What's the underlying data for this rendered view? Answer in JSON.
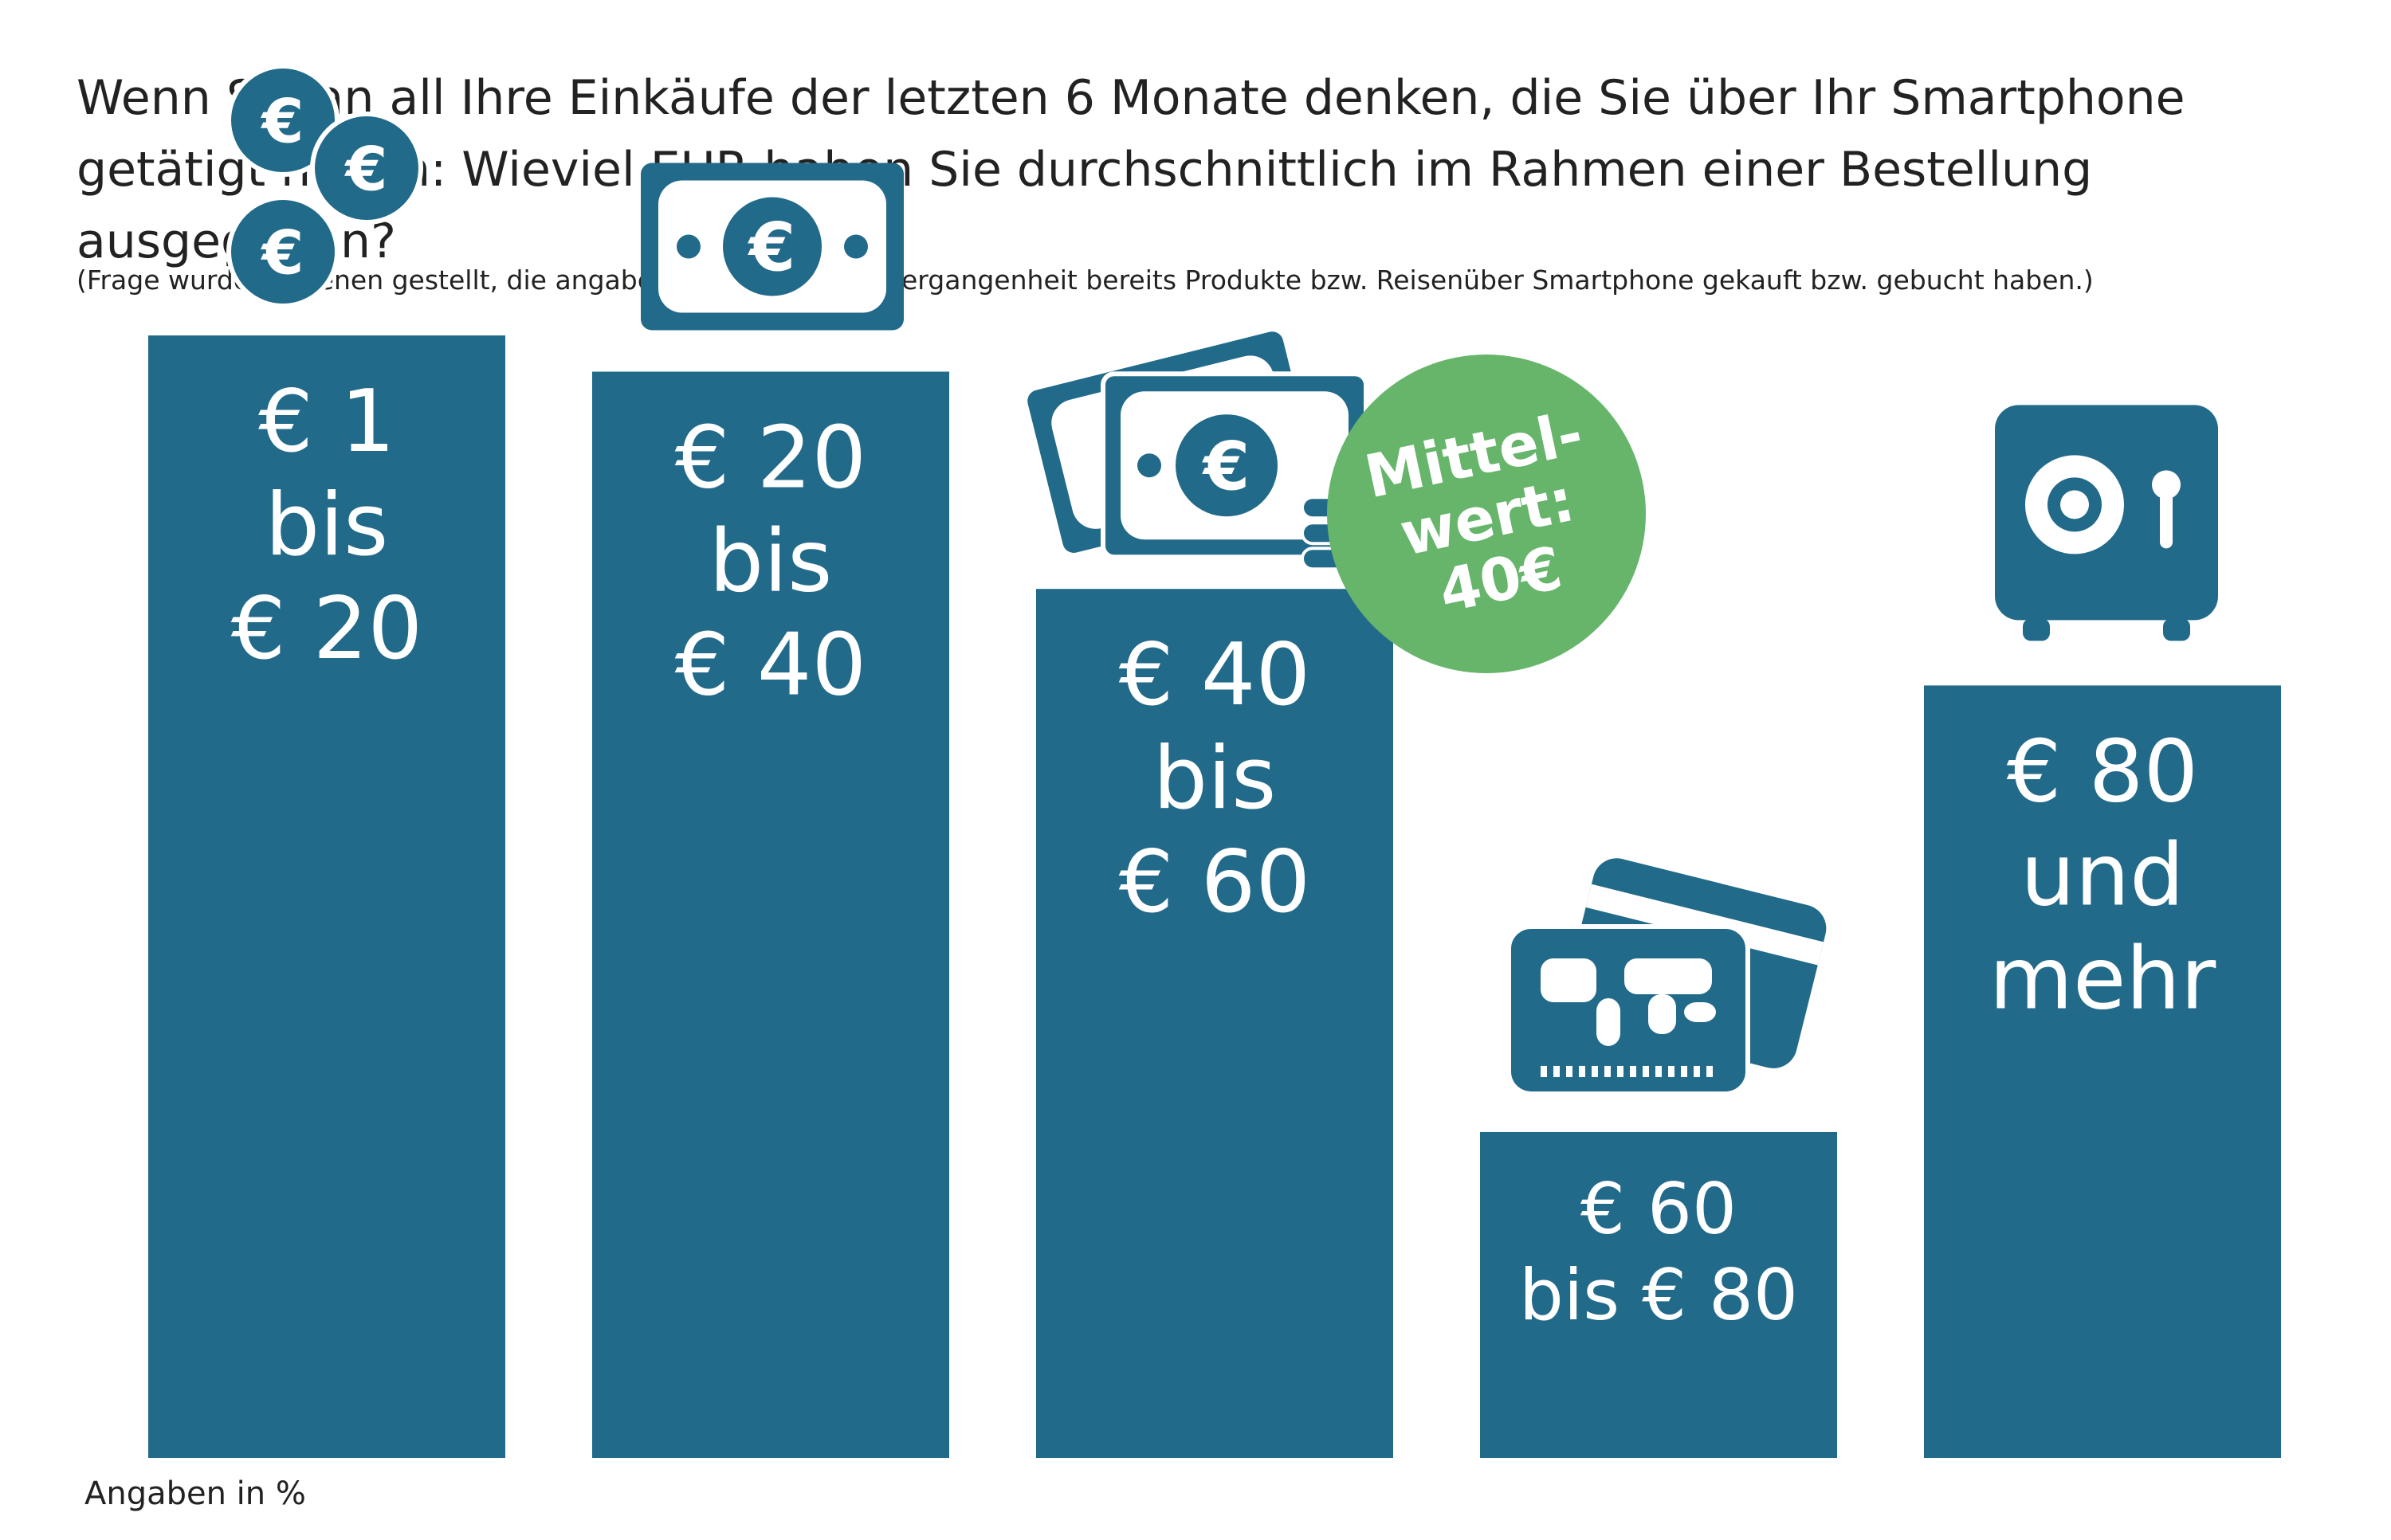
{
  "title": "Wenn Sie an all Ihre Einkäufe der letzten 6 Monate denken, die Sie über Ihr Smartphone getätigt haben: Wieviel EUR haben Sie durchschnittlich im Rahmen einer Bestellung ausgegeben?",
  "subtitle": "(Frage wurde nur jenen gestellt, die angaben, dass sie in der Vergangenheit bereits Produkte bzw. Reisenüber Smartphone gekauft bzw. gebucht haben.)",
  "footnote": "Angaben in %",
  "badge": {
    "lines": [
      "Mittel-",
      "wert:",
      "40€"
    ],
    "color": "#66b56b"
  },
  "colors": {
    "bar": "#226a89",
    "text_on_bar": "#ffffff"
  },
  "chart_data": {
    "type": "bar",
    "categories": [
      "€ 1 bis € 20",
      "€ 20 bis € 40",
      "€ 40 bis € 60",
      "€ 60 bis € 80",
      "€ 80 und mehr"
    ],
    "category_lines": [
      [
        "€ 1",
        "bis",
        "€ 20"
      ],
      [
        "€ 20",
        "bis",
        "€ 40"
      ],
      [
        "€ 40",
        "bis",
        "€ 60"
      ],
      [
        "€ 60",
        "bis € 80"
      ],
      [
        "€ 80",
        "und",
        "mehr"
      ]
    ],
    "values": [
      93,
      90,
      72,
      27,
      64
    ],
    "icons": [
      "coins-icon",
      "banknote-icon",
      "banknotes-stack-icon",
      "credit-cards-icon",
      "safe-icon"
    ],
    "ylim": [
      0,
      100
    ],
    "ylabel": "",
    "xlabel": "",
    "grid": false,
    "legend": "none"
  }
}
